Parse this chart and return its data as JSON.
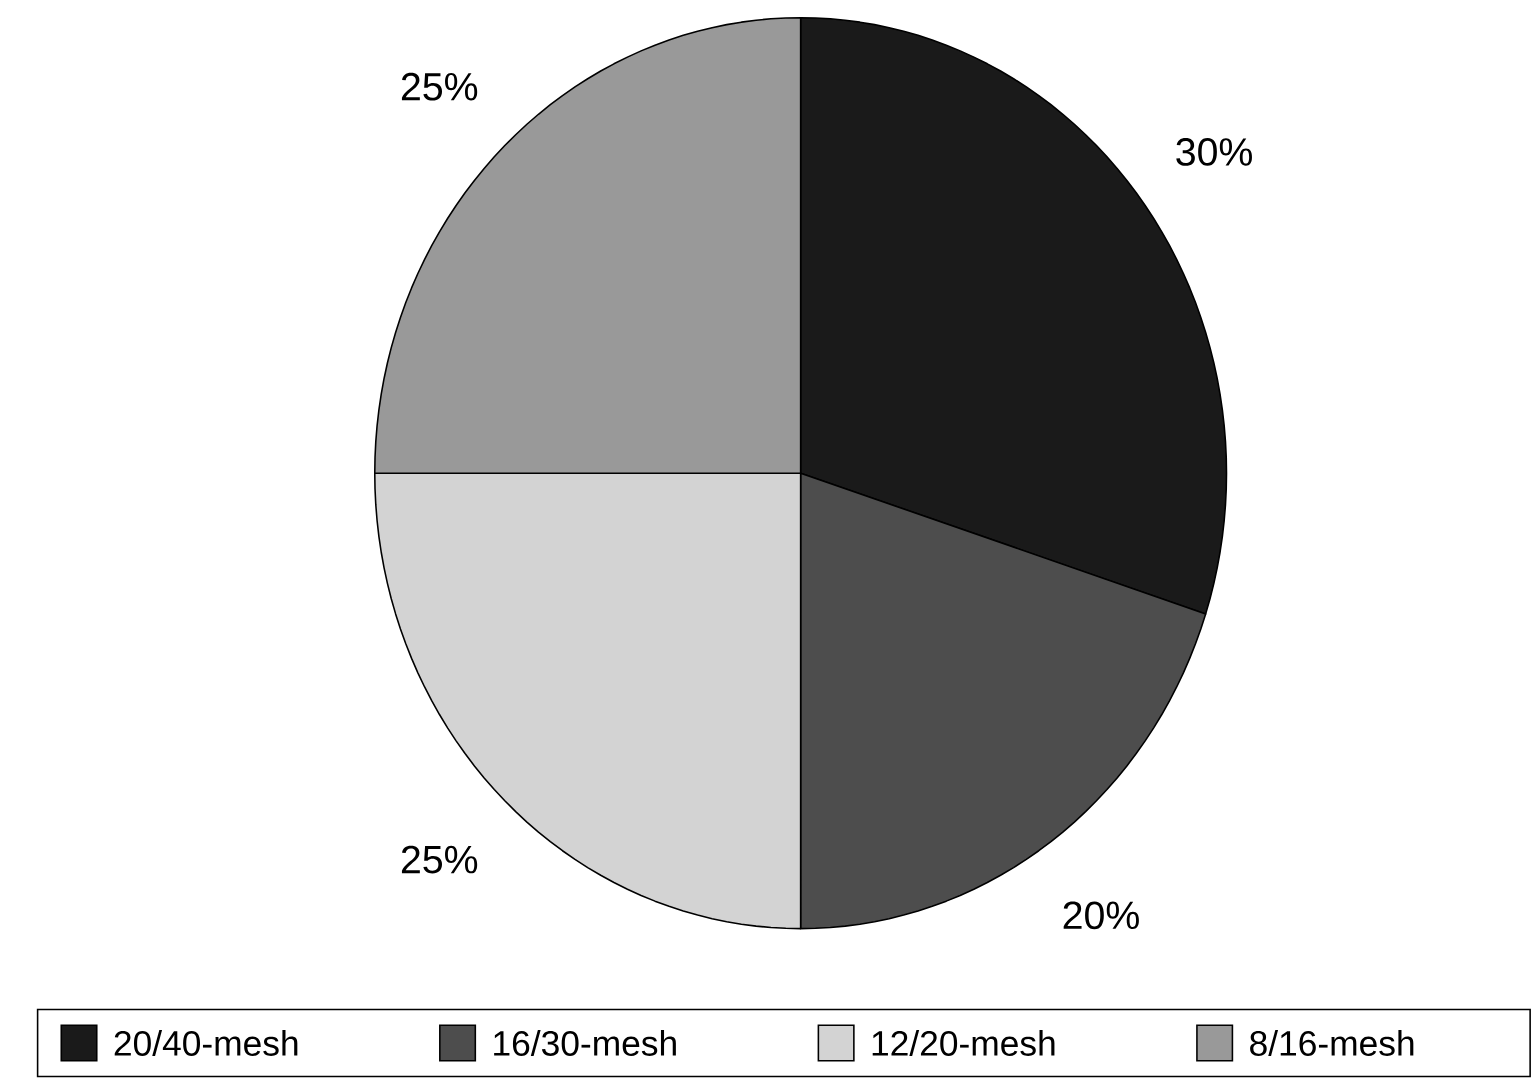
{
  "chart_data": {
    "type": "pie",
    "categories": [
      "20/40-mesh",
      "16/30-mesh",
      "12/20-mesh",
      "8/16-mesh"
    ],
    "values": [
      30,
      20,
      25,
      25
    ],
    "colors": [
      "#1a1a1a",
      "#4d4d4d",
      "#d3d3d3",
      "#999999"
    ],
    "value_labels": [
      "30%",
      "20%",
      "25%",
      "25%"
    ],
    "legend": "bottom"
  }
}
